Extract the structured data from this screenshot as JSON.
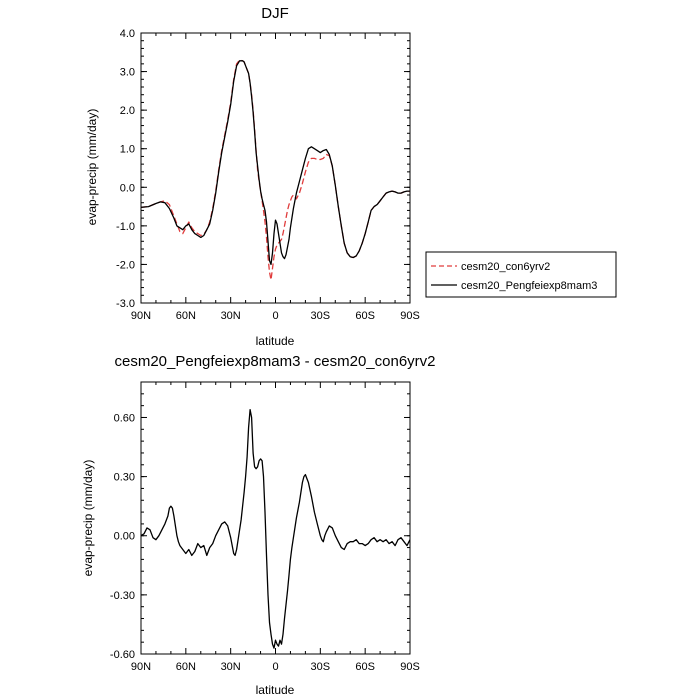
{
  "chart_data": [
    {
      "type": "line",
      "title": "DJF",
      "xlabel": "latitude",
      "ylabel": "evap-precip (mm/day)",
      "xlim": [
        90,
        -90
      ],
      "ylim": [
        -3.0,
        4.0
      ],
      "xticks": [
        90,
        60,
        30,
        0,
        -30,
        -60,
        -90
      ],
      "xtick_labels": [
        "90N",
        "60N",
        "30N",
        "0",
        "30S",
        "60S",
        "90S"
      ],
      "yticks": [
        -3.0,
        -2.0,
        -1.0,
        0.0,
        1.0,
        2.0,
        3.0,
        4.0
      ],
      "ytick_labels": [
        "-3.0",
        "-2.0",
        "-1.0",
        "0.0",
        "1.0",
        "2.0",
        "3.0",
        "4.0"
      ],
      "grid": false,
      "legend": "right, outside plot",
      "series": [
        {
          "name": "cesm20_con6yrv2",
          "color": "#e03c3c",
          "style": "dashed",
          "x": [
            90,
            85,
            80,
            77,
            74,
            71,
            68,
            66,
            64,
            62,
            60,
            58,
            56,
            54,
            52,
            50,
            48,
            46,
            44,
            42,
            40,
            38,
            36,
            34,
            32,
            30,
            28,
            26,
            24,
            22,
            21,
            20,
            18,
            17,
            16,
            15,
            14,
            13,
            12,
            11,
            10,
            9,
            8,
            7,
            6,
            5,
            4,
            3,
            2,
            1,
            0,
            -1,
            -2,
            -3,
            -4,
            -5,
            -6,
            -7,
            -8,
            -9,
            -10,
            -11,
            -12,
            -13,
            -14,
            -16,
            -18,
            -20,
            -22,
            -24,
            -26,
            -28,
            -30,
            -32,
            -34,
            -36,
            -38,
            -40,
            -42,
            -44,
            -46,
            -48,
            -50,
            -52,
            -54,
            -56,
            -58,
            -60,
            -62,
            -64,
            -66,
            -68,
            -70,
            -72,
            -74,
            -76,
            -78,
            -80,
            -82,
            -84,
            -86,
            -88,
            -90
          ],
          "y": [
            -0.52,
            -0.5,
            -0.42,
            -0.38,
            -0.35,
            -0.45,
            -0.75,
            -0.95,
            -1.15,
            -1.2,
            -1.05,
            -0.9,
            -1.05,
            -1.15,
            -1.2,
            -1.25,
            -1.22,
            -1.1,
            -0.9,
            -0.55,
            -0.1,
            0.45,
            0.95,
            1.35,
            1.75,
            2.2,
            2.8,
            3.2,
            3.3,
            3.28,
            3.25,
            3.15,
            2.95,
            2.7,
            2.4,
            2.0,
            1.5,
            0.95,
            0.45,
            0.15,
            -0.1,
            -0.35,
            -0.6,
            -0.9,
            -1.3,
            -1.8,
            -2.2,
            -2.4,
            -2.1,
            -1.8,
            -1.6,
            -1.5,
            -1.45,
            -1.4,
            -1.35,
            -1.2,
            -1.0,
            -0.8,
            -0.6,
            -0.45,
            -0.35,
            -0.25,
            -0.2,
            -0.25,
            -0.3,
            -0.15,
            0.1,
            0.4,
            0.65,
            0.75,
            0.75,
            0.72,
            0.72,
            0.75,
            0.85,
            0.82,
            0.55,
            0.05,
            -0.5,
            -1.0,
            -1.45,
            -1.7,
            -1.8,
            -1.82,
            -1.78,
            -1.65,
            -1.45,
            -1.2,
            -0.9,
            -0.6,
            -0.5,
            -0.45,
            -0.35,
            -0.25,
            -0.15,
            -0.12,
            -0.1,
            -0.12,
            -0.15,
            -0.15,
            -0.12,
            -0.1,
            -0.1
          ]
        },
        {
          "name": "cesm20_Pengfeiexp8mam3",
          "color": "#000000",
          "style": "solid",
          "x": [
            90,
            85,
            80,
            77,
            74,
            71,
            68,
            66,
            64,
            62,
            60,
            58,
            56,
            54,
            52,
            50,
            48,
            46,
            44,
            42,
            40,
            38,
            36,
            34,
            32,
            30,
            28,
            26,
            24,
            22,
            21,
            20,
            18,
            17,
            16,
            15,
            14,
            13,
            12,
            11,
            10,
            9,
            8,
            7,
            6,
            5,
            4,
            3,
            2,
            1,
            0,
            -1,
            -2,
            -3,
            -4,
            -5,
            -6,
            -7,
            -8,
            -9,
            -10,
            -11,
            -12,
            -13,
            -14,
            -16,
            -18,
            -20,
            -22,
            -24,
            -26,
            -28,
            -30,
            -32,
            -34,
            -36,
            -38,
            -40,
            -42,
            -44,
            -46,
            -48,
            -50,
            -52,
            -54,
            -56,
            -58,
            -60,
            -62,
            -64,
            -66,
            -68,
            -70,
            -72,
            -74,
            -76,
            -78,
            -80,
            -82,
            -84,
            -86,
            -88,
            -90
          ],
          "y": [
            -0.52,
            -0.5,
            -0.42,
            -0.38,
            -0.4,
            -0.55,
            -0.8,
            -1.0,
            -1.05,
            -1.1,
            -1.0,
            -0.95,
            -1.1,
            -1.2,
            -1.25,
            -1.3,
            -1.25,
            -1.1,
            -0.95,
            -0.6,
            -0.15,
            0.4,
            0.9,
            1.3,
            1.7,
            2.15,
            2.75,
            3.15,
            3.28,
            3.28,
            3.25,
            3.15,
            2.95,
            2.7,
            2.35,
            1.95,
            1.45,
            0.9,
            0.55,
            0.2,
            -0.1,
            -0.3,
            -0.45,
            -0.6,
            -0.9,
            -1.4,
            -1.9,
            -2.0,
            -1.7,
            -1.2,
            -0.85,
            -0.95,
            -1.2,
            -1.45,
            -1.7,
            -1.8,
            -1.85,
            -1.75,
            -1.55,
            -1.35,
            -1.05,
            -0.8,
            -0.55,
            -0.35,
            -0.15,
            0.15,
            0.45,
            0.75,
            1.0,
            1.05,
            1.0,
            0.95,
            0.9,
            0.95,
            0.98,
            0.85,
            0.55,
            0.05,
            -0.5,
            -1.0,
            -1.45,
            -1.7,
            -1.8,
            -1.82,
            -1.78,
            -1.65,
            -1.45,
            -1.2,
            -0.9,
            -0.6,
            -0.5,
            -0.45,
            -0.35,
            -0.25,
            -0.15,
            -0.12,
            -0.1,
            -0.12,
            -0.15,
            -0.15,
            -0.12,
            -0.1,
            -0.1
          ]
        }
      ]
    },
    {
      "type": "line",
      "title": "cesm20_Pengfeiexp8mam3 - cesm20_con6yrv2",
      "xlabel": "latitude",
      "ylabel": "evap-precip (mm/day)",
      "xlim": [
        90,
        -90
      ],
      "ylim": [
        -0.6,
        0.78
      ],
      "xticks": [
        90,
        60,
        30,
        0,
        -30,
        -60,
        -90
      ],
      "xtick_labels": [
        "90N",
        "60N",
        "30N",
        "0",
        "30S",
        "60S",
        "90S"
      ],
      "yticks": [
        -0.6,
        -0.3,
        0.0,
        0.3,
        0.6
      ],
      "ytick_labels": [
        "-0.60",
        "-0.30",
        "0.00",
        "0.30",
        "0.60"
      ],
      "grid": false,
      "series": [
        {
          "color": "#000000",
          "style": "solid",
          "x": [
            90,
            88,
            86,
            84,
            82,
            80,
            78,
            76,
            74,
            72,
            71,
            70,
            69,
            68,
            67,
            66,
            65,
            64,
            62,
            60,
            58,
            56,
            54,
            52,
            50,
            48,
            46,
            44,
            42,
            40,
            38,
            36,
            34,
            32,
            31,
            30,
            29,
            28,
            27,
            26,
            25,
            24,
            23,
            22,
            21,
            20,
            19,
            18,
            17,
            16,
            15,
            14,
            13,
            12,
            11,
            10,
            9,
            8,
            7,
            6,
            5,
            4,
            3,
            2,
            1,
            0,
            -1,
            -2,
            -3,
            -4,
            -5,
            -6,
            -7,
            -8,
            -9,
            -10,
            -11,
            -12,
            -13,
            -14,
            -15,
            -16,
            -17,
            -18,
            -19,
            -20,
            -21,
            -22,
            -24,
            -26,
            -28,
            -30,
            -31,
            -32,
            -33,
            -34,
            -36,
            -38,
            -40,
            -42,
            -44,
            -46,
            -48,
            -50,
            -52,
            -54,
            -56,
            -58,
            -60,
            -62,
            -64,
            -66,
            -68,
            -70,
            -72,
            -74,
            -76,
            -78,
            -80,
            -82,
            -84,
            -86,
            -88,
            -90
          ],
          "y": [
            0.0,
            0.01,
            0.04,
            0.03,
            -0.01,
            -0.02,
            0.0,
            0.03,
            0.06,
            0.1,
            0.14,
            0.15,
            0.14,
            0.1,
            0.05,
            0.0,
            -0.03,
            -0.05,
            -0.07,
            -0.09,
            -0.07,
            -0.1,
            -0.08,
            -0.04,
            -0.06,
            -0.05,
            -0.1,
            -0.06,
            -0.04,
            0.0,
            0.03,
            0.06,
            0.07,
            0.05,
            0.02,
            -0.01,
            -0.05,
            -0.09,
            -0.1,
            -0.07,
            -0.02,
            0.03,
            0.08,
            0.15,
            0.22,
            0.3,
            0.4,
            0.55,
            0.64,
            0.6,
            0.42,
            0.35,
            0.34,
            0.35,
            0.38,
            0.39,
            0.38,
            0.3,
            0.12,
            -0.1,
            -0.3,
            -0.44,
            -0.5,
            -0.55,
            -0.57,
            -0.53,
            -0.55,
            -0.56,
            -0.53,
            -0.55,
            -0.5,
            -0.42,
            -0.35,
            -0.28,
            -0.2,
            -0.12,
            -0.06,
            -0.01,
            0.04,
            0.09,
            0.13,
            0.17,
            0.22,
            0.27,
            0.3,
            0.31,
            0.29,
            0.27,
            0.2,
            0.12,
            0.06,
            0.0,
            -0.02,
            -0.03,
            0.0,
            0.02,
            0.05,
            0.04,
            0.0,
            -0.03,
            -0.06,
            -0.07,
            -0.04,
            -0.03,
            -0.03,
            -0.02,
            -0.04,
            -0.04,
            -0.05,
            -0.04,
            -0.02,
            -0.01,
            -0.03,
            -0.02,
            -0.03,
            -0.02,
            -0.04,
            -0.03,
            -0.05,
            -0.02,
            -0.01,
            -0.03,
            -0.05,
            -0.02
          ]
        }
      ]
    }
  ]
}
